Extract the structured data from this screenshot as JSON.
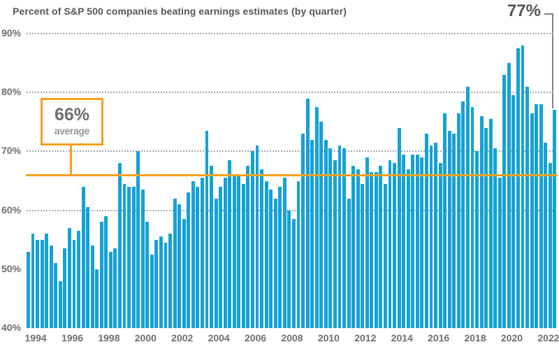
{
  "header": {
    "title": "Percent of S&P 500 companies beating earnings estimates (by quarter)"
  },
  "callout_latest": {
    "label": "77%"
  },
  "callout_average": {
    "value_label": "66%",
    "sub_label": "average"
  },
  "colors": {
    "bar": "#15a2d5",
    "accent_orange": "#f6a11f",
    "title_text": "#55565a",
    "axis_text": "#6d6e71",
    "gridline": "#a8aaad",
    "callout_line": "#7f8184"
  },
  "chart_data": {
    "type": "bar",
    "title": "Percent of S&P 500 companies beating earnings estimates (by quarter)",
    "xlabel": "",
    "ylabel": "",
    "unit": "%",
    "ylim": [
      40,
      90
    ],
    "frequency": "quarterly",
    "x_start": "1994 Q1",
    "x_end": "2022 Q4",
    "grid": "dotted horizontal",
    "y_tick_values": [
      90,
      80,
      70,
      60,
      50,
      40
    ],
    "y_tick_labels": [
      "90%",
      "80%",
      "70%",
      "60%",
      "50%",
      "40%"
    ],
    "gridline_levels": [
      90,
      80,
      70,
      60
    ],
    "average_line": 66,
    "latest_value": 77,
    "x_tick_years": [
      1994,
      1996,
      1998,
      2000,
      2002,
      2004,
      2006,
      2008,
      2010,
      2012,
      2014,
      2016,
      2018,
      2020,
      2022
    ],
    "values": [
      53,
      56,
      55,
      55,
      56,
      54,
      51,
      48,
      53.5,
      57,
      55,
      56.5,
      64,
      60.5,
      54,
      50,
      58,
      59,
      53,
      53.5,
      68,
      64.5,
      64,
      64,
      70,
      63.5,
      58,
      52.5,
      55,
      55.5,
      54.5,
      56,
      62,
      61,
      58.5,
      63,
      65,
      64,
      65.5,
      73.5,
      67.5,
      62,
      64,
      65.5,
      68.5,
      66,
      66,
      64.5,
      67.5,
      70,
      71,
      67,
      65,
      63.5,
      62,
      64,
      65.5,
      60,
      58.5,
      65,
      73,
      79,
      72,
      77.5,
      75,
      72,
      70.5,
      68.5,
      71,
      70.5,
      62,
      67.5,
      67,
      64.5,
      69,
      66.5,
      66.5,
      67.5,
      64.5,
      68.5,
      68,
      74,
      69.5,
      67,
      69.5,
      69.5,
      69,
      73,
      71,
      71.5,
      68,
      76.5,
      73.5,
      73,
      76.5,
      78.5,
      81,
      77.5,
      70,
      76,
      74,
      75.5,
      70.5,
      65.5,
      83,
      85,
      79.5,
      87.5,
      88,
      81,
      76.5,
      78,
      78,
      71.5,
      68,
      77
    ]
  }
}
